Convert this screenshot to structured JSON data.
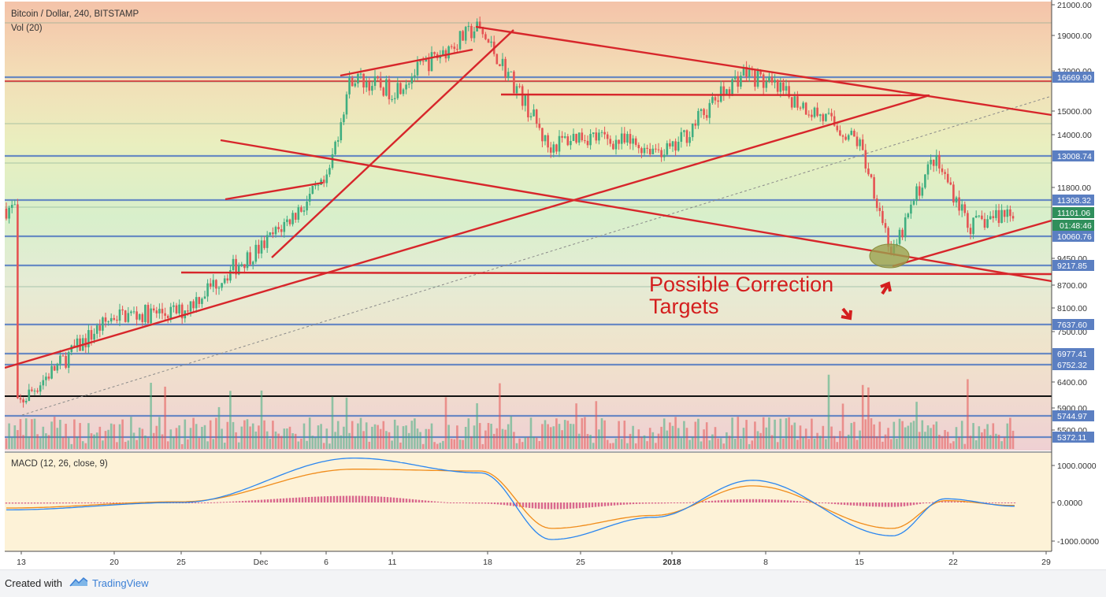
{
  "header": {
    "symbol": "Bitcoin / Dollar, 240, BITSTAMP",
    "volume_label": "Vol (20)",
    "macd_label": "MACD (12, 26, close, 9)"
  },
  "footer": {
    "created_with": "Created with",
    "brand": "TradingView"
  },
  "colors": {
    "bull": "#3fae80",
    "bear": "#e55353",
    "trend": "#d7262b",
    "level": "#5b7fc2",
    "macd": "#2a86f0",
    "signal": "#f08c1a",
    "hist": "#d0457a"
  },
  "annotation": {
    "line1": "Possible Correction",
    "line2": "Targets"
  },
  "chart_data": {
    "type": "candlestick",
    "x_axis": {
      "ticks": [
        "13",
        "20",
        "25",
        "Dec",
        "6",
        "11",
        "18",
        "25",
        "2018",
        "8",
        "15",
        "22",
        "29"
      ]
    },
    "price_axis": {
      "ticks": [
        "21000.00",
        "19000.00",
        "17000.00",
        "15000.00",
        "14000.00",
        "11800.00",
        "9450.00",
        "8700.00",
        "8100.00",
        "7500.00",
        "6400.00",
        "5900.00",
        "5500.00"
      ],
      "horizontal_levels": [
        "16669.90",
        "13008.74",
        "11308.32",
        "10060.76",
        "9217.85",
        "7637.60",
        "6977.41",
        "6752.32",
        "5744.97",
        "5372.11"
      ],
      "last_price": "11101.06",
      "countdown": "01:48:46"
    },
    "price_series": {
      "x": [
        "Nov 13",
        "Nov 20",
        "Nov 25",
        "Dec 1",
        "Dec 6",
        "Dec 8",
        "Dec 11",
        "Dec 17",
        "Dec 22",
        "Dec 25",
        "Jan 1",
        "Jan 7",
        "Jan 15",
        "Jan 17",
        "Jan 20",
        "Jan 23",
        "Jan 27"
      ],
      "close": [
        5900,
        7900,
        8000,
        9800,
        12000,
        16700,
        16000,
        19500,
        13500,
        14000,
        13300,
        17000,
        13700,
        9500,
        13000,
        10500,
        11101.06
      ]
    },
    "macd_axis": {
      "ticks": [
        "1000.0000",
        "0.0000",
        "-1000.0000"
      ]
    },
    "macd_series": {
      "x": [
        "Nov 13",
        "Nov 25",
        "Dec 8",
        "Dec 17",
        "Dec 22",
        "Jan 1",
        "Jan 7",
        "Jan 17",
        "Jan 20",
        "Jan 27"
      ],
      "macd": [
        -200,
        0,
        1200,
        800,
        -1000,
        -400,
        600,
        -900,
        100,
        -100
      ],
      "signal": [
        -150,
        20,
        900,
        850,
        -700,
        -350,
        450,
        -700,
        50,
        -80
      ]
    }
  }
}
